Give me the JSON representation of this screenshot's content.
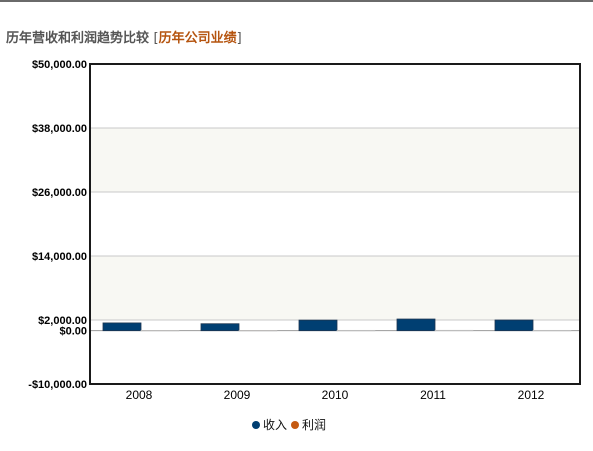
{
  "header": {
    "title": "历年营收和利润趋势比较",
    "bracket_open": "[",
    "link_label": "历年公司业绩",
    "bracket_close": "]"
  },
  "colors": {
    "revenue": "#003f72",
    "profit": "#c55a11",
    "band": "#f8f8f3",
    "grid": "#c8c8c8"
  },
  "chart_data": {
    "type": "bar",
    "categories": [
      "2008",
      "2009",
      "2010",
      "2011",
      "2012"
    ],
    "series": [
      {
        "name": "收入",
        "values": [
          1450,
          1300,
          1980,
          2180,
          2000
        ]
      },
      {
        "name": "利润",
        "values": [
          60,
          50,
          70,
          80,
          70
        ]
      }
    ],
    "yticks": [
      {
        "value": 50000,
        "label": "$50,000.00"
      },
      {
        "value": 38000,
        "label": "$38,000.00"
      },
      {
        "value": 26000,
        "label": "$26,000.00"
      },
      {
        "value": 14000,
        "label": "$14,000.00"
      },
      {
        "value": 2000,
        "label": "$2,000.00"
      },
      {
        "value": 0,
        "label": "$0.00"
      },
      {
        "value": -10000,
        "label": "-$10,000.00"
      }
    ],
    "ylim": [
      -10000,
      50000
    ],
    "grid": true,
    "legend_position": "bottom-center",
    "title": "",
    "xlabel": "",
    "ylabel": ""
  }
}
